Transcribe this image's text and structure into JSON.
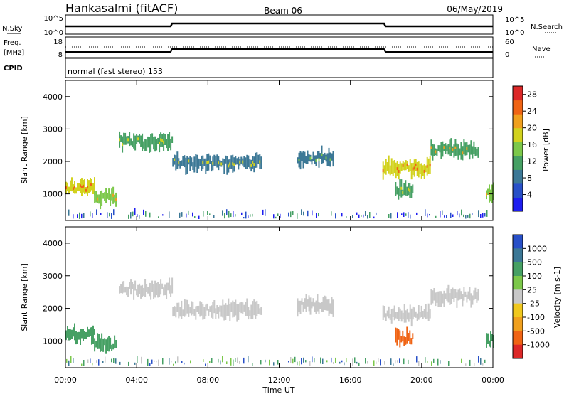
{
  "header": {
    "radar": "Hankasalmi (fitACF)",
    "beam": "Beam 06",
    "date": "06/May/2019"
  },
  "nsky_panel": {
    "left_label": "N.Sky",
    "right_label": "N.Search",
    "left_ticks": [
      "10^5",
      "10^0"
    ],
    "right_ticks": [
      "10^5",
      "10^0"
    ]
  },
  "freq_panel": {
    "left_label_1": "Freq.",
    "left_label_2": "[MHz]",
    "right_label": "Nave",
    "left_ticks": [
      "18",
      "8"
    ],
    "right_ticks": [
      "60",
      "0"
    ]
  },
  "cpid_panel": {
    "label": "CPID",
    "mode": "normal (fast stereo) 153"
  },
  "colors": {
    "axis": "#000000",
    "grey_velocity": "#c8c8c8",
    "power_scale": [
      "#1e1ef0",
      "#2850c8",
      "#3c7896",
      "#46a064",
      "#7cc84a",
      "#d2d21e",
      "#f0a01e",
      "#f06414",
      "#dc2828"
    ],
    "velocity_scale": [
      "#2850c8",
      "#3c7896",
      "#46a064",
      "#7cc84a",
      "#c8c8c8",
      "#f0c81e",
      "#f0a01e",
      "#f06414",
      "#dc2828"
    ]
  },
  "chart_data": [
    {
      "type": "heatmap",
      "title": "",
      "xlabel": "",
      "ylabel": "Slant Range [km]",
      "xlim": [
        0,
        24
      ],
      "ylim": [
        180,
        4500
      ],
      "x_ticks": [
        0,
        4,
        8,
        12,
        16,
        20,
        24
      ],
      "y_ticks": [
        1000,
        2000,
        3000,
        4000
      ],
      "colorbar": {
        "label": "Power [dB]",
        "ticks": [
          "4",
          "8",
          "12",
          "16",
          "20",
          "24",
          "28"
        ],
        "range": [
          0,
          30
        ]
      },
      "echo_regions": [
        {
          "t_start": 0.0,
          "t_end": 1.6,
          "range_km": 1200,
          "value": 18
        },
        {
          "t_start": 1.6,
          "t_end": 2.8,
          "range_km": 900,
          "value": 16
        },
        {
          "t_start": 3.0,
          "t_end": 6.0,
          "range_km": 2600,
          "value": 10
        },
        {
          "t_start": 6.0,
          "t_end": 11.0,
          "range_km": 1950,
          "value": 9
        },
        {
          "t_start": 13.0,
          "t_end": 15.0,
          "range_km": 2100,
          "value": 8
        },
        {
          "t_start": 17.8,
          "t_end": 20.5,
          "range_km": 1800,
          "value": 17
        },
        {
          "t_start": 20.5,
          "t_end": 23.2,
          "range_km": 2350,
          "value": 13
        },
        {
          "t_start": 18.5,
          "t_end": 19.5,
          "range_km": 1100,
          "value": 12
        },
        {
          "t_start": 23.6,
          "t_end": 24.0,
          "range_km": 1000,
          "value": 14
        }
      ]
    },
    {
      "type": "heatmap",
      "title": "",
      "xlabel": "Time UT",
      "ylabel": "Slant Range [km]",
      "xlim": [
        0,
        24
      ],
      "ylim": [
        180,
        4500
      ],
      "x_ticks": [
        0,
        4,
        8,
        12,
        16,
        20,
        24
      ],
      "x_tick_labels": [
        "00:00",
        "04:00",
        "08:00",
        "12:00",
        "16:00",
        "20:00",
        "00:00"
      ],
      "y_ticks": [
        1000,
        2000,
        3000,
        4000
      ],
      "colorbar": {
        "label": "Velocity [m s-1]",
        "ticks": [
          "1000",
          "500",
          "100",
          "25",
          "-25",
          "-100",
          "-500",
          "-1000"
        ]
      },
      "echo_regions": [
        {
          "t_start": 0.0,
          "t_end": 1.6,
          "range_km": 1200,
          "value": 120
        },
        {
          "t_start": 1.6,
          "t_end": 2.8,
          "range_km": 900,
          "value": 150
        },
        {
          "t_start": 3.0,
          "t_end": 6.0,
          "range_km": 2600,
          "value": 0
        },
        {
          "t_start": 6.0,
          "t_end": 11.0,
          "range_km": 1950,
          "value": 0
        },
        {
          "t_start": 13.0,
          "t_end": 15.0,
          "range_km": 2100,
          "value": 0
        },
        {
          "t_start": 17.8,
          "t_end": 20.5,
          "range_km": 1800,
          "value": 0
        },
        {
          "t_start": 20.5,
          "t_end": 23.2,
          "range_km": 2350,
          "value": 0
        },
        {
          "t_start": 18.5,
          "t_end": 19.5,
          "range_km": 1100,
          "value": -300
        },
        {
          "t_start": 23.6,
          "t_end": 24.0,
          "range_km": 1000,
          "value": 150
        }
      ]
    }
  ]
}
